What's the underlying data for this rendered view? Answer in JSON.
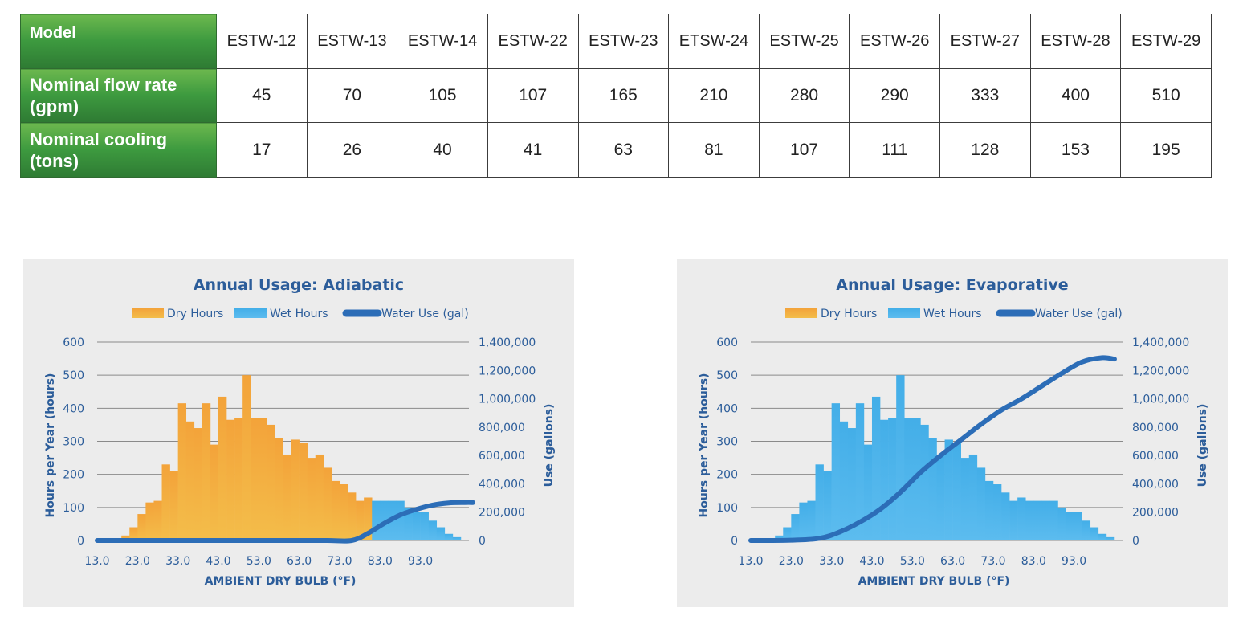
{
  "table": {
    "header_label": "Model",
    "models": [
      "ESTW-12",
      "ESTW-13",
      "ESTW-14",
      "ESTW-22",
      "ESTW-23",
      "ETSW-24",
      "ESTW-25",
      "ESTW-26",
      "ESTW-27",
      "ESTW-28",
      "ESTW-29"
    ],
    "rows": [
      {
        "label": "Nominal flow rate (gpm)",
        "values": [
          "45",
          "70",
          "105",
          "107",
          "165",
          "210",
          "280",
          "290",
          "333",
          "400",
          "510"
        ]
      },
      {
        "label": "Nominal cooling (tons)",
        "values": [
          "17",
          "26",
          "40",
          "41",
          "63",
          "81",
          "107",
          "111",
          "128",
          "153",
          "195"
        ]
      }
    ],
    "header_color": "#3d9a3f"
  },
  "chart_data": [
    {
      "type": "bar",
      "title": "Annual Usage: Adiabatic",
      "legend": [
        "Dry Hours",
        "Wet Hours",
        "Water Use (gal)"
      ],
      "legend_placement": "top",
      "xlabel": "AMBIENT DRY BULB (°F)",
      "ylabel": "Hours per Year (hours)",
      "y2label": "Use  (gallons)",
      "xticks": [
        "13.0",
        "23.0",
        "33.0",
        "43.0",
        "53.0",
        "63.0",
        "73.0",
        "83.0",
        "93.0"
      ],
      "yticks": [
        "600",
        "500",
        "400",
        "300",
        "200",
        "100",
        "0"
      ],
      "y2ticks": [
        "1,400,000",
        "1,200,000",
        "1,000,000",
        "800,000",
        "600,000",
        "400,000",
        "200,000",
        "0"
      ],
      "ylim": [
        0,
        600
      ],
      "y2lim": [
        0,
        1400000
      ],
      "x_start": 13,
      "bin_width": 2,
      "grid": true,
      "series": [
        {
          "name": "Dry Hours",
          "color": "#f0a53a",
          "start_bin": 0,
          "values": [
            0,
            0,
            5,
            15,
            40,
            80,
            115,
            120,
            230,
            210,
            415,
            360,
            340,
            415,
            290,
            435,
            365,
            370,
            500,
            370,
            370,
            350,
            310,
            260,
            305,
            295,
            250,
            260,
            220,
            180,
            170,
            145,
            120,
            130,
            0,
            0,
            0,
            0,
            0,
            0,
            0,
            0,
            0,
            0,
            0,
            0
          ]
        },
        {
          "name": "Wet Hours",
          "color": "#50b4ea",
          "start_bin": 0,
          "values": [
            0,
            0,
            0,
            0,
            0,
            0,
            0,
            0,
            0,
            0,
            0,
            0,
            0,
            0,
            0,
            0,
            0,
            0,
            0,
            0,
            0,
            0,
            0,
            0,
            0,
            0,
            0,
            0,
            0,
            0,
            0,
            0,
            0,
            0,
            120,
            120,
            120,
            120,
            100,
            85,
            85,
            60,
            40,
            20,
            10,
            0
          ]
        },
        {
          "name": "Water Use (gal)",
          "color": "#2c6db7",
          "x": [
            13,
            20,
            30,
            40,
            50,
            60,
            70,
            76,
            80,
            84,
            88,
            92,
            96,
            100,
            104,
            106
          ],
          "y": [
            0,
            0,
            0,
            0,
            0,
            0,
            0,
            0,
            50000,
            120000,
            180000,
            220000,
            250000,
            265000,
            268000,
            268000
          ]
        }
      ]
    },
    {
      "type": "bar",
      "title": "Annual Usage: Evaporative",
      "legend": [
        "Dry Hours",
        "Wet Hours",
        "Water Use (gal)"
      ],
      "legend_placement": "top",
      "xlabel": "AMBIENT DRY BULB (°F)",
      "ylabel": "Hours per Year (hours)",
      "y2label": "Use (gallons)",
      "xticks": [
        "13.0",
        "23.0",
        "33.0",
        "43.0",
        "53.0",
        "63.0",
        "73.0",
        "83.0",
        "93.0"
      ],
      "yticks": [
        "600",
        "500",
        "400",
        "300",
        "200",
        "100",
        "0"
      ],
      "y2ticks": [
        "1,400,000",
        "1,200,000",
        "1,000,000",
        "800,000",
        "600,000",
        "400,000",
        "200,000",
        "0"
      ],
      "ylim": [
        0,
        600
      ],
      "y2lim": [
        0,
        1400000
      ],
      "x_start": 13,
      "bin_width": 2,
      "grid": true,
      "series": [
        {
          "name": "Dry Hours",
          "color": "#f0a53a",
          "start_bin": 0,
          "values": []
        },
        {
          "name": "Wet Hours",
          "color": "#50b4ea",
          "start_bin": 0,
          "values": [
            0,
            0,
            5,
            15,
            40,
            80,
            115,
            120,
            230,
            210,
            415,
            360,
            340,
            415,
            290,
            435,
            365,
            370,
            500,
            370,
            370,
            350,
            310,
            260,
            305,
            295,
            250,
            260,
            220,
            180,
            170,
            145,
            120,
            130,
            120,
            120,
            120,
            120,
            100,
            85,
            85,
            60,
            40,
            20,
            10,
            0
          ]
        },
        {
          "name": "Water Use (gal)",
          "color": "#2c6db7",
          "x": [
            13,
            17,
            23,
            30,
            35,
            40,
            45,
            50,
            55,
            60,
            65,
            70,
            75,
            80,
            85,
            90,
            95,
            100,
            103
          ],
          "y": [
            0,
            0,
            2000,
            15000,
            60000,
            130000,
            220000,
            340000,
            480000,
            600000,
            710000,
            820000,
            920000,
            1000000,
            1090000,
            1180000,
            1260000,
            1290000,
            1280000
          ]
        }
      ]
    }
  ]
}
